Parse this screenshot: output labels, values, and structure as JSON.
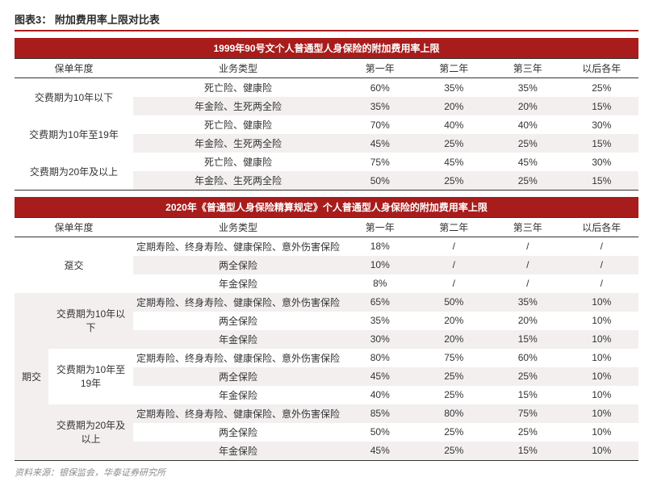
{
  "title": "图表3： 附加费用率上限对比表",
  "source": "资料来源：银保监会，华泰证券研究所",
  "colors": {
    "header_bg": "#a81c1c",
    "header_text": "#ffffff",
    "row_alt_bg": "#f3efef",
    "border": "#333333",
    "source_text": "#8c8c8c"
  },
  "table1": {
    "header": "1999年90号文个人普通型人身保险的附加费用率上限",
    "columns": [
      "保单年度",
      "业务类型",
      "第一年",
      "第二年",
      "第三年",
      "以后各年"
    ],
    "groups": [
      {
        "label": "交费期为10年以下",
        "rows": [
          {
            "type": "死亡险、健康险",
            "vals": [
              "60%",
              "35%",
              "35%",
              "25%"
            ]
          },
          {
            "type": "年金险、生死两全险",
            "vals": [
              "35%",
              "20%",
              "20%",
              "15%"
            ]
          }
        ]
      },
      {
        "label": "交费期为10年至19年",
        "rows": [
          {
            "type": "死亡险、健康险",
            "vals": [
              "70%",
              "40%",
              "40%",
              "30%"
            ]
          },
          {
            "type": "年金险、生死两全险",
            "vals": [
              "45%",
              "25%",
              "25%",
              "15%"
            ]
          }
        ]
      },
      {
        "label": "交费期为20年及以上",
        "rows": [
          {
            "type": "死亡险、健康险",
            "vals": [
              "75%",
              "45%",
              "45%",
              "30%"
            ]
          },
          {
            "type": "年金险、生死两全险",
            "vals": [
              "50%",
              "25%",
              "25%",
              "15%"
            ]
          }
        ]
      }
    ]
  },
  "table2": {
    "header": "2020年《普通型人身保险精算规定》个人普通型人身保险的附加费用率上限",
    "columns": [
      "保单年度",
      "业务类型",
      "第一年",
      "第二年",
      "第三年",
      "以后各年"
    ],
    "section1": {
      "label": "趸交",
      "rows": [
        {
          "type": "定期寿险、终身寿险、健康保险、意外伤害保险",
          "vals": [
            "18%",
            "/",
            "/",
            "/"
          ]
        },
        {
          "type": "两全保险",
          "vals": [
            "10%",
            "/",
            "/",
            "/"
          ]
        },
        {
          "type": "年金保险",
          "vals": [
            "8%",
            "/",
            "/",
            "/"
          ]
        }
      ]
    },
    "section2": {
      "label": "期交",
      "groups": [
        {
          "label": "交费期为10年以下",
          "rows": [
            {
              "type": "定期寿险、终身寿险、健康保险、意外伤害保险",
              "vals": [
                "65%",
                "50%",
                "35%",
                "10%"
              ]
            },
            {
              "type": "两全保险",
              "vals": [
                "35%",
                "20%",
                "20%",
                "10%"
              ]
            },
            {
              "type": "年金保险",
              "vals": [
                "30%",
                "20%",
                "15%",
                "10%"
              ]
            }
          ]
        },
        {
          "label": "交费期为10年至19年",
          "rows": [
            {
              "type": "定期寿险、终身寿险、健康保险、意外伤害保险",
              "vals": [
                "80%",
                "75%",
                "60%",
                "10%"
              ]
            },
            {
              "type": "两全保险",
              "vals": [
                "45%",
                "25%",
                "25%",
                "10%"
              ]
            },
            {
              "type": "年金保险",
              "vals": [
                "40%",
                "25%",
                "15%",
                "10%"
              ]
            }
          ]
        },
        {
          "label": "交费期为20年及以上",
          "rows": [
            {
              "type": "定期寿险、终身寿险、健康保险、意外伤害保险",
              "vals": [
                "85%",
                "80%",
                "75%",
                "10%"
              ]
            },
            {
              "type": "两全保险",
              "vals": [
                "50%",
                "25%",
                "25%",
                "10%"
              ]
            },
            {
              "type": "年金保险",
              "vals": [
                "45%",
                "25%",
                "15%",
                "10%"
              ]
            }
          ]
        }
      ]
    }
  }
}
